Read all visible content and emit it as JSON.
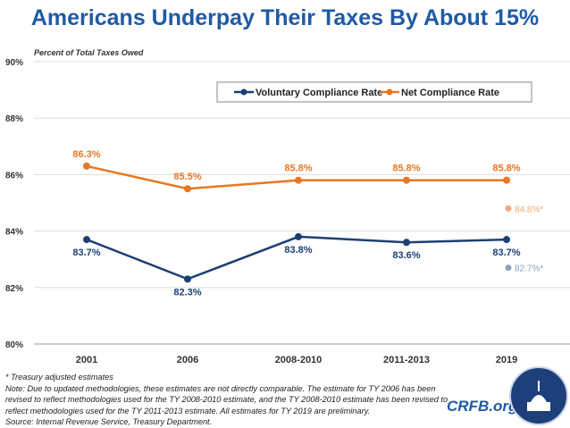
{
  "title": "Americans Underpay Their Taxes By About 15%",
  "chart_data": {
    "type": "line",
    "title": "Americans Underpay Their Taxes By About 15%",
    "ylabel": "Percent of Total Taxes Owed",
    "categories": [
      "2001",
      "2006",
      "2008-2010",
      "2011-2013",
      "2019"
    ],
    "ylim": [
      80,
      90
    ],
    "yticks": [
      "80%",
      "82%",
      "84%",
      "86%",
      "88%",
      "90%"
    ],
    "grid": true,
    "legend": "top-right",
    "series": [
      {
        "name": "Voluntary Compliance Rate",
        "color": "#1c3f73",
        "values": [
          83.7,
          82.3,
          83.8,
          83.6,
          83.7
        ],
        "labels": [
          "83.7%",
          "82.3%",
          "83.8%",
          "83.6%",
          "83.7%"
        ]
      },
      {
        "name": "Net Compliance Rate",
        "color": "#e87722",
        "values": [
          86.3,
          85.5,
          85.8,
          85.8,
          85.8
        ],
        "labels": [
          "86.3%",
          "85.5%",
          "85.8%",
          "85.8%",
          "85.8%"
        ]
      }
    ],
    "annotations": [
      {
        "category": "2019",
        "value": 84.8,
        "label": "84.8%*",
        "color": "#f0a878"
      },
      {
        "category": "2019",
        "value": 82.7,
        "label": "82.7%*",
        "color": "#8ea0bf"
      }
    ]
  },
  "notes": {
    "asterisk": "* Treasury adjusted estimates",
    "note": "Note: Due to updated methodologies, these estimates are not directly comparable. The estimate for TY 2006 has been revised to reflect methodologies used for the TY 2008-2010 estimate, and the TY 2008-2010 estimate has been revised to reflect methodologies used for the TY 2011-2013 estimate. All estimates for TY 2019 are preliminary.",
    "source": "Source: Internal Revenue Service, Treasury Department."
  },
  "brand": "CRFB.org"
}
